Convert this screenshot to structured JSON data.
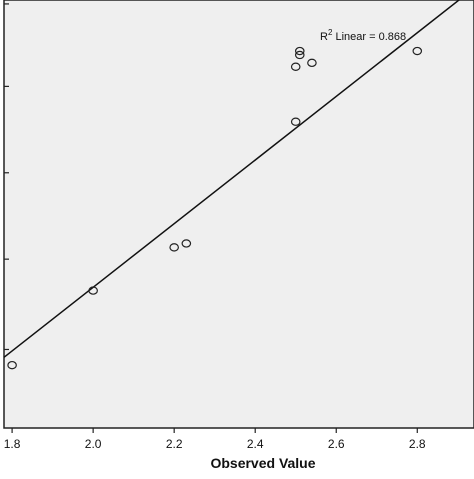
{
  "chart_data": {
    "type": "scatter",
    "xlabel": "Observed Value",
    "ylabel": "",
    "xlim": [
      1.78,
      2.94
    ],
    "ylim": [
      1.85,
      2.94
    ],
    "x_ticks": [
      "1.8",
      "2.0",
      "2.2",
      "2.4",
      "2.6",
      "2.8"
    ],
    "x_tick_values": [
      1.8,
      2.0,
      2.2,
      2.4,
      2.6,
      2.8
    ],
    "y_tick_values": [
      2.05,
      2.28,
      2.5,
      2.72,
      2.93
    ],
    "grid": false,
    "points": [
      {
        "x": 1.8,
        "y": 2.01
      },
      {
        "x": 2.0,
        "y": 2.2
      },
      {
        "x": 2.2,
        "y": 2.31
      },
      {
        "x": 2.23,
        "y": 2.32
      },
      {
        "x": 2.5,
        "y": 2.77
      },
      {
        "x": 2.5,
        "y": 2.63
      },
      {
        "x": 2.51,
        "y": 2.8
      },
      {
        "x": 2.51,
        "y": 2.81
      },
      {
        "x": 2.54,
        "y": 2.78
      },
      {
        "x": 2.8,
        "y": 2.81
      }
    ],
    "fit_line": {
      "x": [
        1.78,
        2.94
      ],
      "y": [
        2.03,
        2.97
      ]
    },
    "annotation": {
      "prefix": "R",
      "sup": "2",
      "suffix": " Linear = 0.868"
    },
    "colors": {
      "background": "#efefef",
      "axis": "#222222",
      "marker": "#222222",
      "line": "#111111"
    }
  }
}
